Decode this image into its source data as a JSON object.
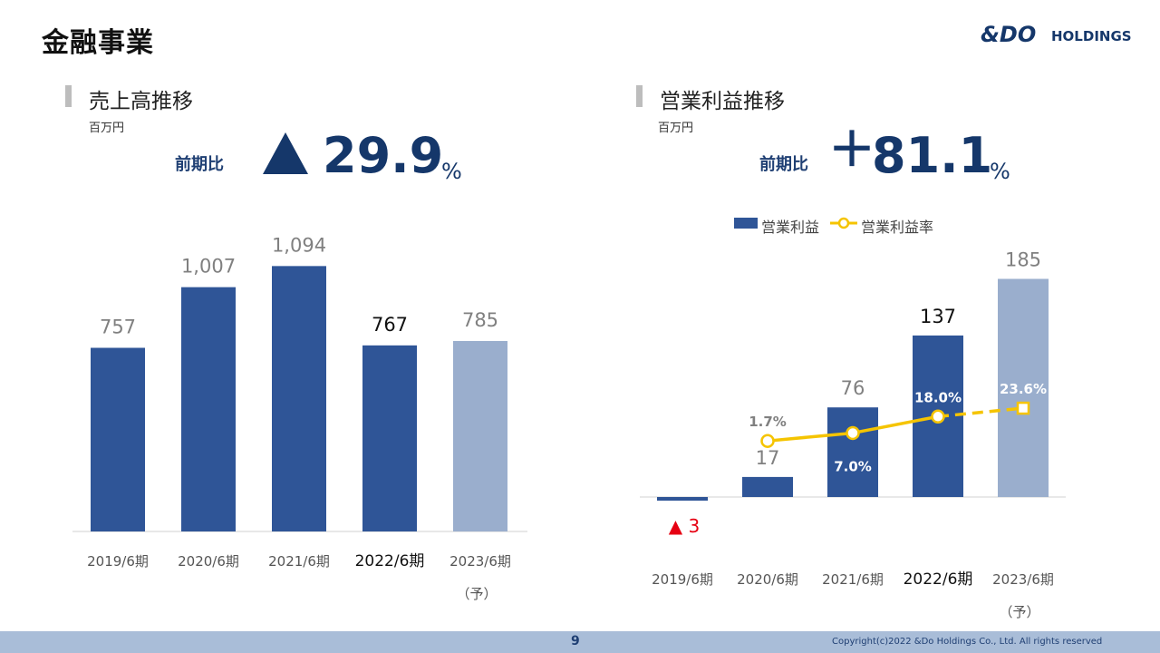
{
  "page_title": "金融事業",
  "logo": {
    "text_mark": "&DO",
    "text_word": "HOLDINGS"
  },
  "sales": {
    "title": "売上高推移",
    "unit": "百万円",
    "yoy_label": "前期比",
    "yoy_value": "29.9",
    "yoy_unit": "%"
  },
  "op": {
    "title": "営業利益推移",
    "unit": "百万円",
    "yoy_label": "前期比",
    "yoy_sign": "＋",
    "yoy_value": "81.1",
    "yoy_unit": "%"
  },
  "footer": {
    "page_number": "9",
    "copyright": "Copyright(c)2022 &Do Holdings Co., Ltd. All rights reserved"
  },
  "colors": {
    "bar": "#2f5597",
    "bar_forecast": "#9aaecd",
    "line": "#f5c400",
    "negative": "#e60012",
    "accent": "#15376a"
  },
  "chart_data": [
    {
      "type": "bar",
      "title": "売上高推移",
      "ylabel": "百万円",
      "categories": [
        "2019/6期",
        "2020/6期",
        "2021/6期",
        "2022/6期",
        "2023/6期"
      ],
      "category_notes": [
        "",
        "",
        "",
        "",
        "（予）"
      ],
      "values": [
        757,
        1007,
        1094,
        767,
        785
      ],
      "value_labels": [
        "757",
        "1,007",
        "1,094",
        "767",
        "785"
      ],
      "highlight_index": 3,
      "forecast_index": 4,
      "ylim": [
        0,
        1200
      ],
      "grid": false
    },
    {
      "type": "bar",
      "title": "営業利益推移",
      "ylabel": "百万円",
      "categories": [
        "2019/6期",
        "2020/6期",
        "2021/6期",
        "2022/6期",
        "2023/6期"
      ],
      "category_notes": [
        "",
        "",
        "",
        "",
        "（予）"
      ],
      "legend_position": "top",
      "series": [
        {
          "name": "営業利益",
          "type": "bar",
          "values": [
            -3,
            17,
            76,
            137,
            185
          ],
          "value_labels": [
            "▲ 3",
            "17",
            "76",
            "137",
            "185"
          ]
        },
        {
          "name": "営業利益率",
          "type": "line",
          "values": [
            null,
            1.7,
            7.0,
            18.0,
            23.6
          ],
          "value_labels": [
            "",
            "1.7%",
            "7.0%",
            "18.0%",
            "23.6%"
          ],
          "forecast_dashed_from": 3
        }
      ],
      "highlight_index": 3,
      "forecast_index": 4,
      "ylim": [
        -10,
        200
      ],
      "grid": false
    }
  ]
}
